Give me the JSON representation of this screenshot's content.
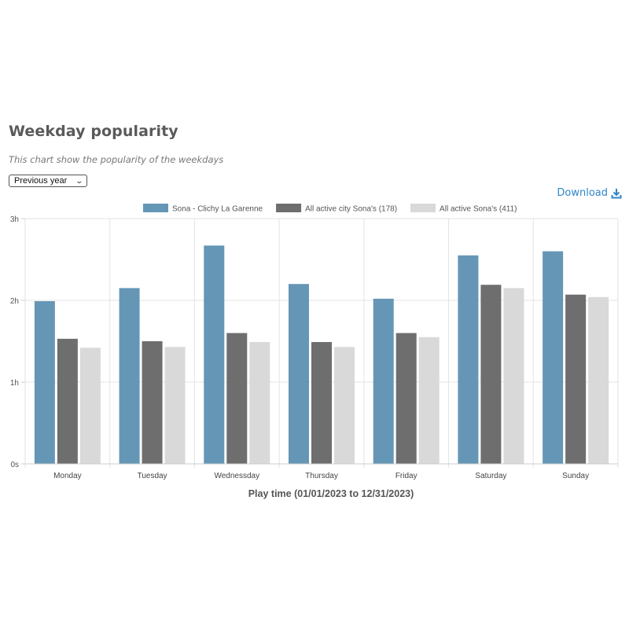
{
  "header": {
    "title": "Weekday popularity",
    "subtitle": "This chart show the popularity of the weekdays"
  },
  "controls": {
    "period_select": {
      "selected": "Previous year",
      "icon": "chevron-down-icon"
    },
    "download": {
      "label": "Download",
      "icon": "download-icon",
      "color": "#2f86c8"
    }
  },
  "chart_data": {
    "type": "bar",
    "categories": [
      "Monday",
      "Tuesday",
      "Wednessday",
      "Thursday",
      "Friday",
      "Saturday",
      "Sunday"
    ],
    "series": [
      {
        "name": "Sona - Clichy La Garenne",
        "color": "#6596b6",
        "values": [
          1.99,
          2.15,
          2.67,
          2.2,
          2.02,
          2.55,
          2.6
        ]
      },
      {
        "name": "All active city Sona's (178)",
        "color": "#6e6e6e",
        "values": [
          1.53,
          1.5,
          1.6,
          1.49,
          1.6,
          2.19,
          2.07
        ]
      },
      {
        "name": "All active Sona's (411)",
        "color": "#d9d9d9",
        "values": [
          1.42,
          1.43,
          1.49,
          1.43,
          1.55,
          2.15,
          2.04
        ]
      }
    ],
    "ylim": [
      0,
      3
    ],
    "y_ticks": [
      {
        "value": 0,
        "label": "0s"
      },
      {
        "value": 1,
        "label": "1h"
      },
      {
        "value": 2,
        "label": "2h"
      },
      {
        "value": 3,
        "label": "3h"
      }
    ],
    "xlabel": "Play time (01/01/2023 to 12/31/2023)",
    "ylabel": "",
    "grid": true,
    "legend": "top-center"
  }
}
